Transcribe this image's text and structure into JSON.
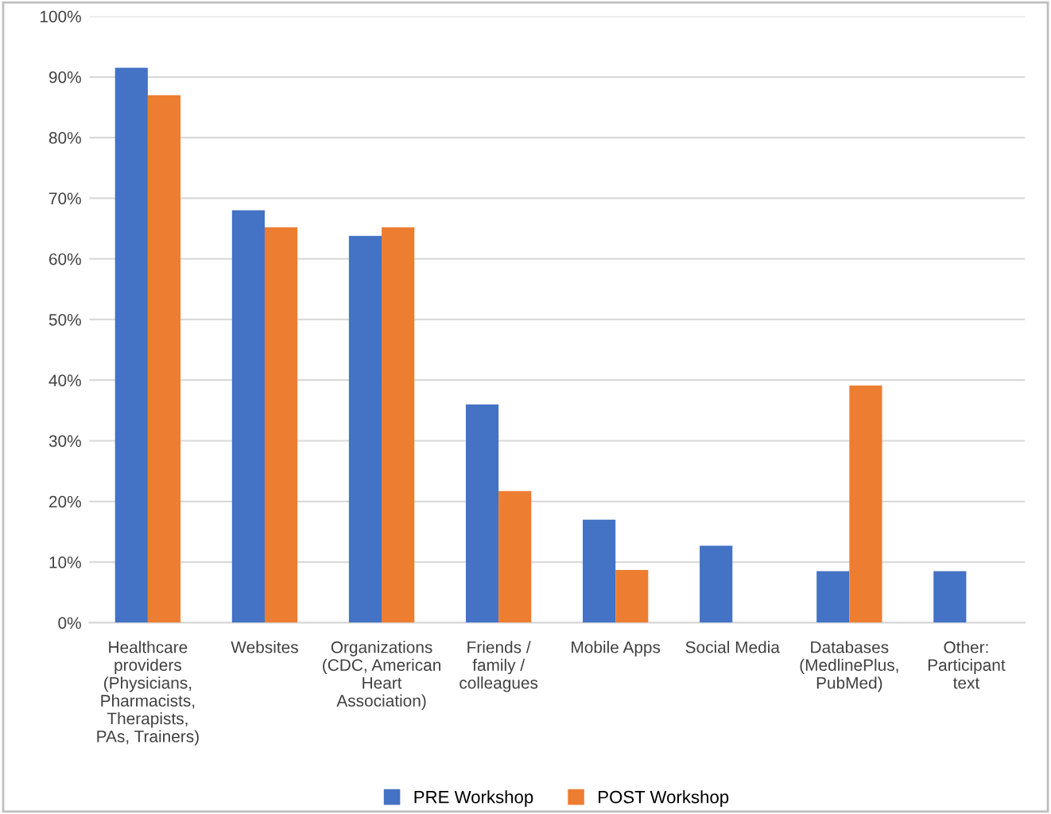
{
  "chart_data": {
    "type": "bar",
    "categories": [
      "Healthcare providers (Physicians, Pharmacists, Therapists, PAs, Trainers)",
      "Websites",
      "Organizations (CDC, American Heart Association)",
      "Friends / family / colleagues",
      "Mobile Apps",
      "Social Media",
      "Databases (MedlinePlus, PubMed)",
      "Other: Participant text"
    ],
    "series": [
      {
        "name": "PRE Workshop",
        "color": "#4472c4",
        "values": [
          91.5,
          68,
          63.8,
          36,
          17,
          12.7,
          8.5,
          8.5
        ]
      },
      {
        "name": "POST Workshop",
        "color": "#ed7d31",
        "values": [
          87,
          65.2,
          65.2,
          21.7,
          8.7,
          null,
          39.1,
          null
        ]
      }
    ],
    "ylim": [
      0,
      100
    ],
    "yticks": [
      {
        "value": 0,
        "label": "0%"
      },
      {
        "value": 10,
        "label": "10%"
      },
      {
        "value": 20,
        "label": "20%"
      },
      {
        "value": 30,
        "label": "30%"
      },
      {
        "value": 40,
        "label": "40%"
      },
      {
        "value": 50,
        "label": "50%"
      },
      {
        "value": 60,
        "label": "60%"
      },
      {
        "value": 70,
        "label": "70%"
      },
      {
        "value": 80,
        "label": "80%"
      },
      {
        "value": 90,
        "label": "90%"
      },
      {
        "value": 100,
        "label": "100%"
      }
    ],
    "grid": "y",
    "legend": "bottom"
  }
}
